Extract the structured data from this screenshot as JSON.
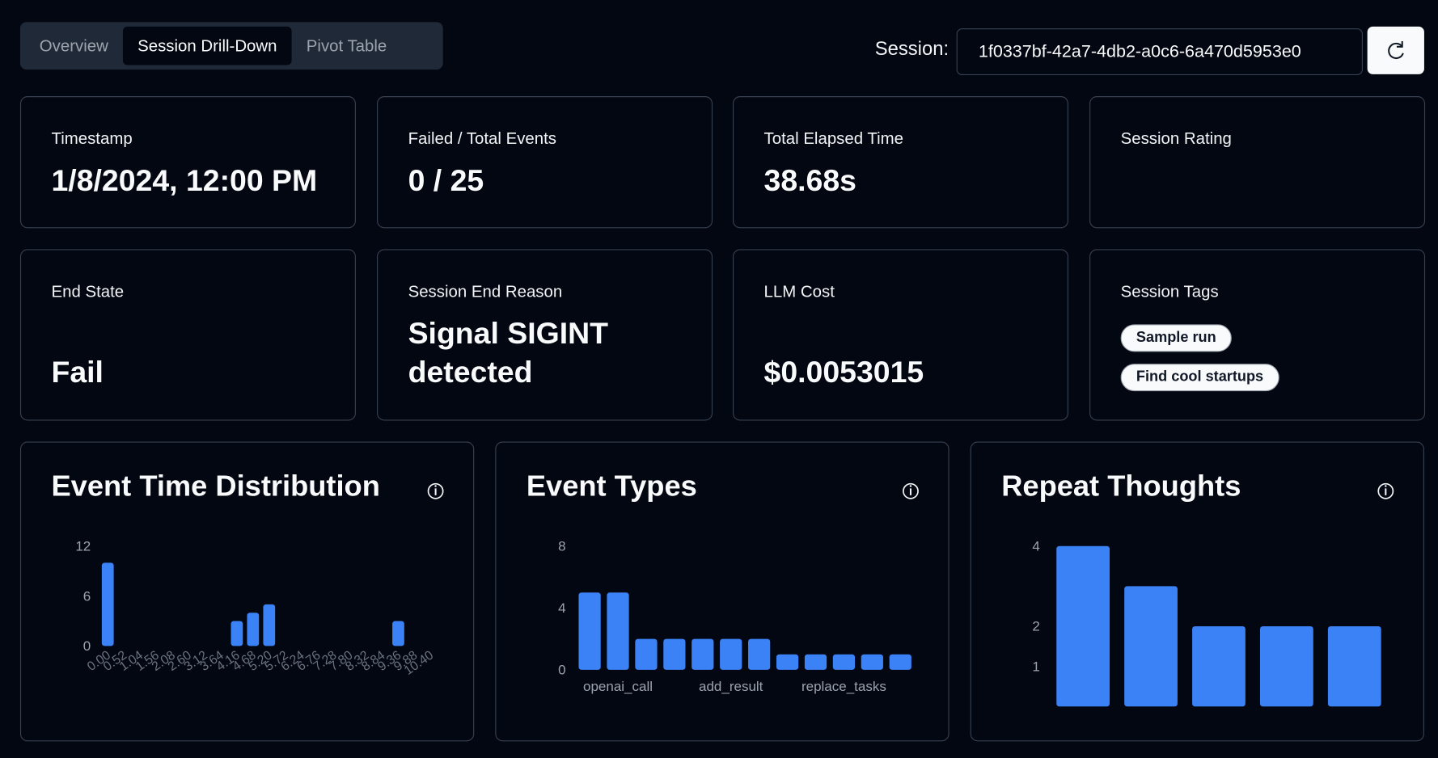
{
  "tabs": [
    "Overview",
    "Session Drill-Down",
    "Pivot Table"
  ],
  "session": {
    "label": "Session:",
    "id": "1f0337bf-42a7-4db2-a0c6-6a470d5953e0"
  },
  "cards": [
    {
      "label": "Timestamp",
      "value": "1/8/2024, 12:00 PM"
    },
    {
      "label": "Failed / Total Events",
      "value": "0 / 25"
    },
    {
      "label": "Total Elapsed Time",
      "value": "38.68s"
    },
    {
      "label": "Session Rating"
    },
    {
      "label": "End State",
      "value": "Fail"
    },
    {
      "label": "Session End Reason",
      "value": "Signal SIGINT detected"
    },
    {
      "label": "LLM Cost",
      "value": "$0.0053015"
    },
    {
      "label": "Session Tags",
      "tags": [
        "Sample run",
        "Find cool startups"
      ]
    }
  ],
  "chart_data": [
    {
      "type": "bar",
      "title": "Event Time Distribution",
      "color": "#3b82f6",
      "categories": [
        "0.00",
        "0.52",
        "1.04",
        "1.56",
        "2.08",
        "2.60",
        "3.12",
        "3.64",
        "4.16",
        "4.68",
        "5.20",
        "5.72",
        "6.24",
        "6.76",
        "7.28",
        "7.80",
        "8.32",
        "8.84",
        "9.36",
        "9.88",
        "10.40"
      ],
      "values": [
        10,
        0,
        0,
        0,
        0,
        0,
        0,
        0,
        3,
        4,
        5,
        0,
        0,
        0,
        0,
        0,
        0,
        0,
        3,
        0,
        0
      ],
      "ylim": [
        0,
        12
      ],
      "yticks": [
        0,
        6,
        12
      ]
    },
    {
      "type": "bar",
      "title": "Event Types",
      "color": "#3b82f6",
      "categories": [
        null,
        "openai_call",
        null,
        null,
        null,
        "add_result",
        null,
        null,
        null,
        "replace_tasks",
        null,
        null
      ],
      "values": [
        5,
        5,
        2,
        2,
        2,
        2,
        2,
        1,
        1,
        1,
        1,
        1
      ],
      "ylim": [
        0,
        8
      ],
      "yticks": [
        0,
        4,
        8
      ]
    },
    {
      "type": "bar",
      "title": "Repeat Thoughts",
      "color": "#3b82f6",
      "categories": [
        null,
        null,
        null,
        null,
        null
      ],
      "values": [
        4,
        3,
        2,
        2,
        2
      ],
      "ylim": [
        0,
        4
      ],
      "yticks": [
        1,
        2,
        4
      ]
    }
  ]
}
